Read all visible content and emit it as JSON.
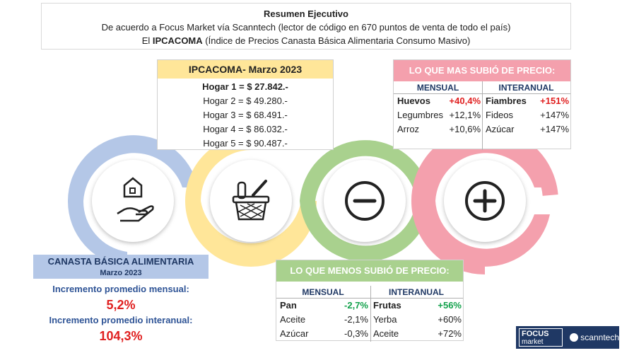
{
  "summary": {
    "title": "Resumen Ejecutivo",
    "line2": "De acuerdo a Focus Market vía Scanntech (lector de código en 670 puntos de venta de todo el país)",
    "line3_prefix": "El ",
    "line3_bold": "IPCACOMA",
    "line3_suffix": " (Índice de Precios Canasta Básica Alimentaria Consumo Masivo)"
  },
  "ipcacoma": {
    "title": "IPCACOMA- Marzo 2023",
    "rows": [
      "Hogar 1 = $ 27.842.-",
      "Hogar 2 = $ 49.280.-",
      "Hogar 3 = $ 68.491.-",
      "Hogar 4 = $ 86.032.-",
      "Hogar 5 = $ 90.487.-"
    ]
  },
  "mas_subio": {
    "title": "LO QUE MAS SUBIÓ DE PRECIO:",
    "mensual_header": "MENSUAL",
    "interanual_header": "INTERANUAL",
    "mensual": [
      {
        "label": "Huevos",
        "value": "+40,4%"
      },
      {
        "label": "Legumbres",
        "value": "+12,1%"
      },
      {
        "label": "Arroz",
        "value": "+10,6%"
      }
    ],
    "interanual": [
      {
        "label": "Fiambres",
        "value": "+151%"
      },
      {
        "label": "Fideos",
        "value": "+147%"
      },
      {
        "label": "Azúcar",
        "value": "+147%"
      }
    ]
  },
  "menos_subio": {
    "title": "LO QUE MENOS SUBIÓ DE PRECIO:",
    "mensual_header": "MENSUAL",
    "interanual_header": "INTERANUAL",
    "mensual": [
      {
        "label": "Pan",
        "value": "-2,7%"
      },
      {
        "label": "Aceite",
        "value": "-2,1%"
      },
      {
        "label": "Azúcar",
        "value": "-0,3%"
      }
    ],
    "interanual": [
      {
        "label": "Frutas",
        "value": "+56%"
      },
      {
        "label": "Yerba",
        "value": "+60%"
      },
      {
        "label": "Aceite",
        "value": "+72%"
      }
    ]
  },
  "canasta": {
    "title": "CANASTA BÁSICA ALIMENTARIA",
    "subtitle": "Marzo 2023",
    "mensual_label": "Incremento promedio mensual:",
    "mensual_value": "5,2%",
    "interanual_label": "Incremento promedio interanual:",
    "interanual_value": "104,3%"
  },
  "logo": {
    "focus_line1": "FOCUS",
    "focus_line2": "market",
    "scanntech": "scanntech"
  },
  "colors": {
    "blue_ring": "#b4c7e7",
    "yellow_ring": "#ffe699",
    "green_ring": "#a9d18e",
    "pink_ring": "#f4a0ad",
    "accent_red": "#e02020",
    "accent_green": "#12a14b",
    "navy": "#1f3864"
  },
  "icons": [
    "house-hand-icon",
    "grocery-basket-icon",
    "minus-circle-icon",
    "plus-circle-icon"
  ]
}
